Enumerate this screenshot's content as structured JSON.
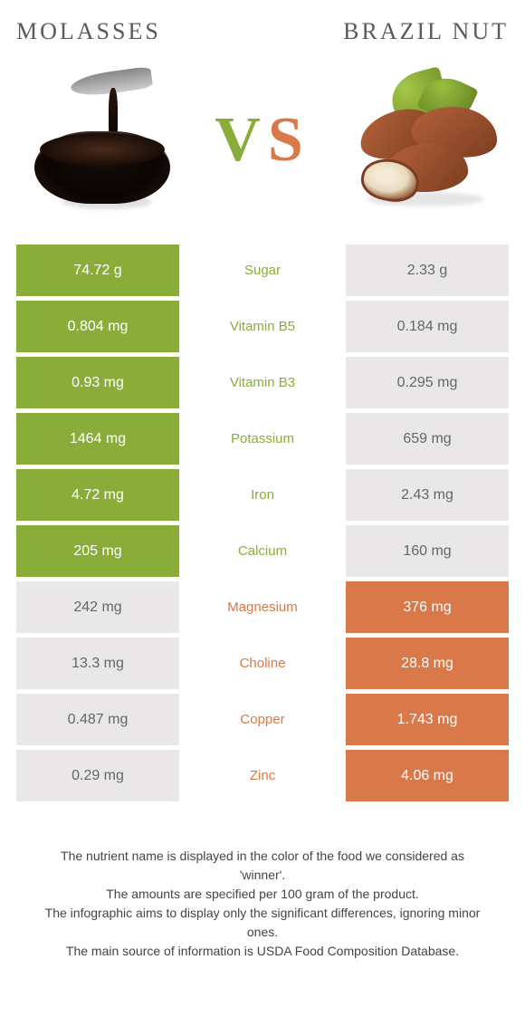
{
  "colors": {
    "left_food": "#8aad3a",
    "right_food": "#d97848",
    "neutral_bg": "#e9e7e7",
    "neutral_text": "#666666"
  },
  "header": {
    "left_title": "molasses",
    "right_title": "brazil nut",
    "vs_v": "V",
    "vs_s": "S"
  },
  "table": {
    "rows": [
      {
        "left": "74.72 g",
        "name": "Sugar",
        "right": "2.33 g",
        "winner": "left"
      },
      {
        "left": "0.804 mg",
        "name": "Vitamin B5",
        "right": "0.184 mg",
        "winner": "left"
      },
      {
        "left": "0.93 mg",
        "name": "Vitamin B3",
        "right": "0.295 mg",
        "winner": "left"
      },
      {
        "left": "1464 mg",
        "name": "Potassium",
        "right": "659 mg",
        "winner": "left"
      },
      {
        "left": "4.72 mg",
        "name": "Iron",
        "right": "2.43 mg",
        "winner": "left"
      },
      {
        "left": "205 mg",
        "name": "Calcium",
        "right": "160 mg",
        "winner": "left"
      },
      {
        "left": "242 mg",
        "name": "Magnesium",
        "right": "376 mg",
        "winner": "right"
      },
      {
        "left": "13.3 mg",
        "name": "Choline",
        "right": "28.8 mg",
        "winner": "right"
      },
      {
        "left": "0.487 mg",
        "name": "Copper",
        "right": "1.743 mg",
        "winner": "right"
      },
      {
        "left": "0.29 mg",
        "name": "Zinc",
        "right": "4.06 mg",
        "winner": "right"
      }
    ]
  },
  "footer": {
    "line1": "The nutrient name is displayed in the color of the food we considered as 'winner'.",
    "line2": "The amounts are specified per 100 gram of the product.",
    "line3": "The infographic aims to display only the significant differences, ignoring minor ones.",
    "line4": "The main source of information is USDA Food Composition Database."
  }
}
